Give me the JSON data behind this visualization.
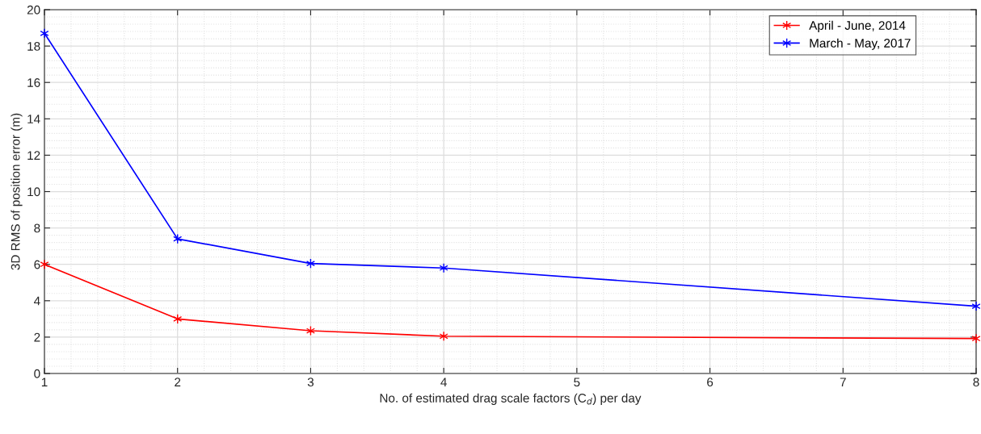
{
  "chart_data": {
    "type": "line",
    "xlabel": "No. of estimated drag scale factors (C$_{d}$) per day",
    "ylabel": "3D RMS of position error (m)",
    "x": [
      1,
      2,
      3,
      4,
      8
    ],
    "series": [
      {
        "name": "April - June, 2014",
        "color": "#ff0000",
        "values": [
          6.0,
          3.0,
          2.35,
          2.05,
          1.92
        ]
      },
      {
        "name": "March - May, 2017",
        "color": "#0000ff",
        "values": [
          18.7,
          7.4,
          6.05,
          5.8,
          3.7
        ]
      }
    ],
    "xlim": [
      1,
      8
    ],
    "xticks": [
      1,
      2,
      3,
      4,
      5,
      6,
      7,
      8
    ],
    "ylim": [
      0,
      20
    ],
    "yticks": [
      0,
      2,
      4,
      6,
      8,
      10,
      12,
      14,
      16,
      18,
      20
    ],
    "grid": true,
    "legend": "top right",
    "marker": "cross",
    "line_style": "solid"
  }
}
